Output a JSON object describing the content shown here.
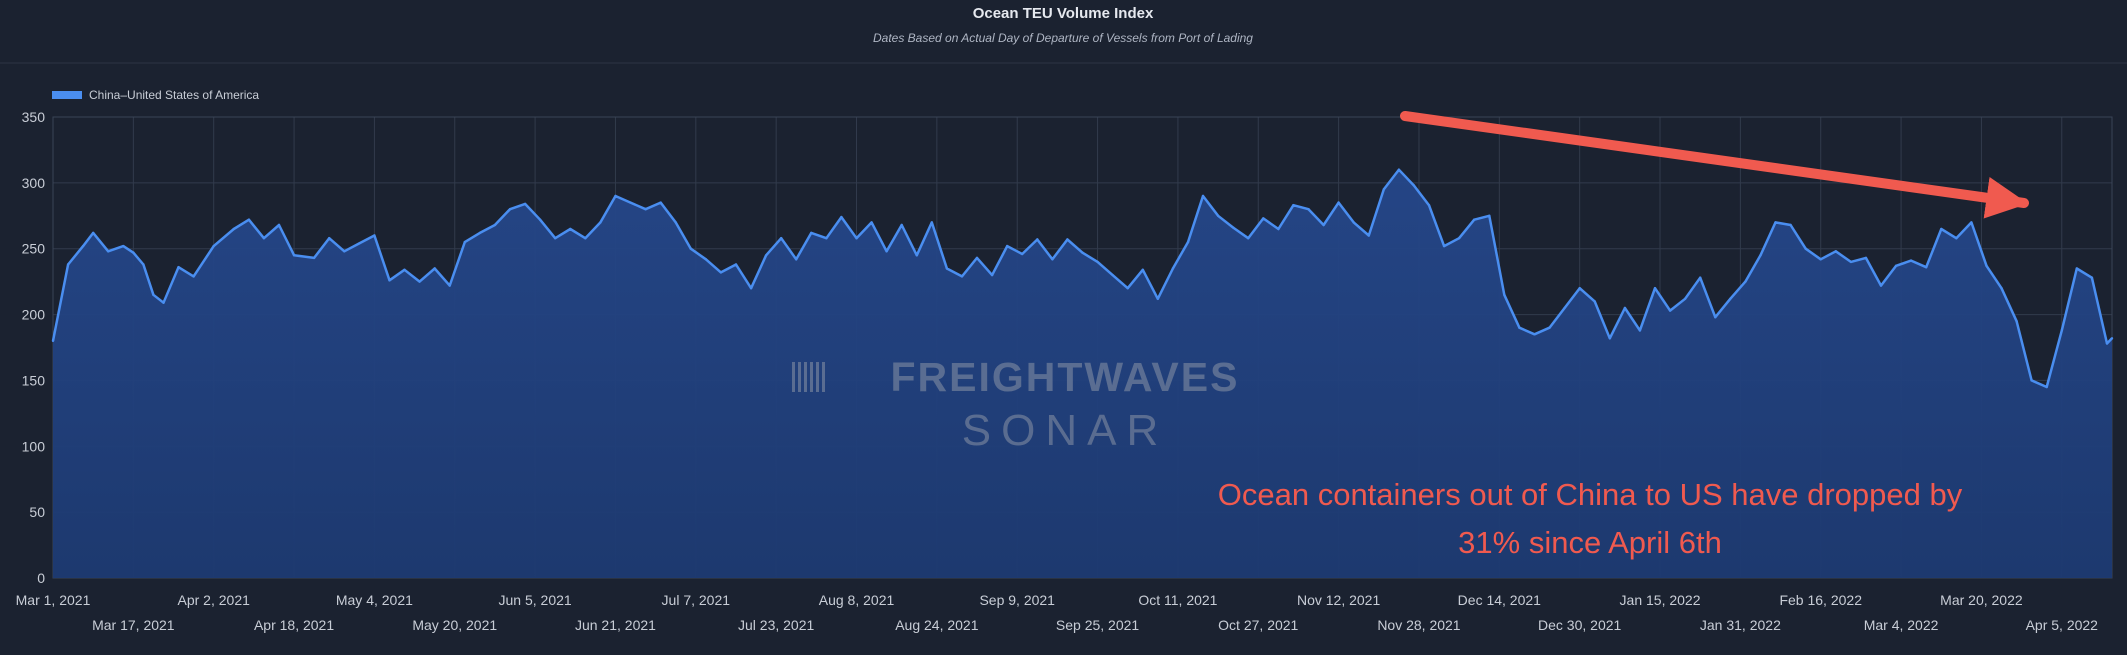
{
  "chart_data": {
    "type": "area",
    "title": "Ocean TEU Volume Index",
    "subtitle": "Dates Based on Actual Day of Departure of Vessels from Port of Lading",
    "xlabel": "",
    "ylabel": "",
    "ylim": [
      0,
      350
    ],
    "yticks": [
      0,
      50,
      100,
      150,
      200,
      250,
      300,
      350
    ],
    "x_start": "2021-03-01",
    "x_end": "2022-04-15",
    "xticks": [
      {
        "date": "2021-03-01",
        "label": "Mar 1, 2021",
        "row": 1
      },
      {
        "date": "2021-03-17",
        "label": "Mar 17, 2021",
        "row": 2
      },
      {
        "date": "2021-04-02",
        "label": "Apr 2, 2021",
        "row": 1
      },
      {
        "date": "2021-04-18",
        "label": "Apr 18, 2021",
        "row": 2
      },
      {
        "date": "2021-05-04",
        "label": "May 4, 2021",
        "row": 1
      },
      {
        "date": "2021-05-20",
        "label": "May 20, 2021",
        "row": 2
      },
      {
        "date": "2021-06-05",
        "label": "Jun 5, 2021",
        "row": 1
      },
      {
        "date": "2021-06-21",
        "label": "Jun 21, 2021",
        "row": 2
      },
      {
        "date": "2021-07-07",
        "label": "Jul 7, 2021",
        "row": 1
      },
      {
        "date": "2021-07-23",
        "label": "Jul 23, 2021",
        "row": 2
      },
      {
        "date": "2021-08-08",
        "label": "Aug 8, 2021",
        "row": 1
      },
      {
        "date": "2021-08-24",
        "label": "Aug 24, 2021",
        "row": 2
      },
      {
        "date": "2021-09-09",
        "label": "Sep 9, 2021",
        "row": 1
      },
      {
        "date": "2021-09-25",
        "label": "Sep 25, 2021",
        "row": 2
      },
      {
        "date": "2021-10-11",
        "label": "Oct 11, 2021",
        "row": 1
      },
      {
        "date": "2021-10-27",
        "label": "Oct 27, 2021",
        "row": 2
      },
      {
        "date": "2021-11-12",
        "label": "Nov 12, 2021",
        "row": 1
      },
      {
        "date": "2021-11-28",
        "label": "Nov 28, 2021",
        "row": 2
      },
      {
        "date": "2021-12-14",
        "label": "Dec 14, 2021",
        "row": 1
      },
      {
        "date": "2021-12-30",
        "label": "Dec 30, 2021",
        "row": 2
      },
      {
        "date": "2022-01-15",
        "label": "Jan 15, 2022",
        "row": 1
      },
      {
        "date": "2022-01-31",
        "label": "Jan 31, 2022",
        "row": 2
      },
      {
        "date": "2022-02-16",
        "label": "Feb 16, 2022",
        "row": 1
      },
      {
        "date": "2022-03-04",
        "label": "Mar 4, 2022",
        "row": 2
      },
      {
        "date": "2022-03-20",
        "label": "Mar 20, 2022",
        "row": 1
      },
      {
        "date": "2022-04-05",
        "label": "Apr 5, 2022",
        "row": 2
      }
    ],
    "grid": true,
    "legend": "top-left",
    "series": [
      {
        "name": "China–United States of America",
        "color": "#4a8ef0",
        "points": [
          [
            "2021-03-01",
            180
          ],
          [
            "2021-03-04",
            238
          ],
          [
            "2021-03-07",
            252
          ],
          [
            "2021-03-09",
            262
          ],
          [
            "2021-03-12",
            248
          ],
          [
            "2021-03-15",
            252
          ],
          [
            "2021-03-17",
            247
          ],
          [
            "2021-03-19",
            238
          ],
          [
            "2021-03-21",
            215
          ],
          [
            "2021-03-23",
            209
          ],
          [
            "2021-03-26",
            236
          ],
          [
            "2021-03-29",
            229
          ],
          [
            "2021-04-02",
            252
          ],
          [
            "2021-04-06",
            265
          ],
          [
            "2021-04-09",
            272
          ],
          [
            "2021-04-12",
            258
          ],
          [
            "2021-04-15",
            268
          ],
          [
            "2021-04-18",
            245
          ],
          [
            "2021-04-22",
            243
          ],
          [
            "2021-04-25",
            258
          ],
          [
            "2021-04-28",
            248
          ],
          [
            "2021-05-01",
            254
          ],
          [
            "2021-05-04",
            260
          ],
          [
            "2021-05-07",
            226
          ],
          [
            "2021-05-10",
            234
          ],
          [
            "2021-05-13",
            225
          ],
          [
            "2021-05-16",
            235
          ],
          [
            "2021-05-19",
            222
          ],
          [
            "2021-05-22",
            255
          ],
          [
            "2021-05-25",
            262
          ],
          [
            "2021-05-28",
            268
          ],
          [
            "2021-05-31",
            280
          ],
          [
            "2021-06-03",
            284
          ],
          [
            "2021-06-06",
            272
          ],
          [
            "2021-06-09",
            258
          ],
          [
            "2021-06-12",
            265
          ],
          [
            "2021-06-15",
            258
          ],
          [
            "2021-06-18",
            270
          ],
          [
            "2021-06-21",
            290
          ],
          [
            "2021-06-24",
            285
          ],
          [
            "2021-06-27",
            280
          ],
          [
            "2021-06-30",
            285
          ],
          [
            "2021-07-03",
            270
          ],
          [
            "2021-07-06",
            250
          ],
          [
            "2021-07-09",
            242
          ],
          [
            "2021-07-12",
            232
          ],
          [
            "2021-07-15",
            238
          ],
          [
            "2021-07-18",
            220
          ],
          [
            "2021-07-21",
            245
          ],
          [
            "2021-07-24",
            258
          ],
          [
            "2021-07-27",
            242
          ],
          [
            "2021-07-30",
            262
          ],
          [
            "2021-08-02",
            258
          ],
          [
            "2021-08-05",
            274
          ],
          [
            "2021-08-08",
            258
          ],
          [
            "2021-08-11",
            270
          ],
          [
            "2021-08-14",
            248
          ],
          [
            "2021-08-17",
            268
          ],
          [
            "2021-08-20",
            245
          ],
          [
            "2021-08-23",
            270
          ],
          [
            "2021-08-26",
            235
          ],
          [
            "2021-08-29",
            229
          ],
          [
            "2021-09-01",
            243
          ],
          [
            "2021-09-04",
            230
          ],
          [
            "2021-09-07",
            252
          ],
          [
            "2021-09-10",
            246
          ],
          [
            "2021-09-13",
            257
          ],
          [
            "2021-09-16",
            242
          ],
          [
            "2021-09-19",
            257
          ],
          [
            "2021-09-22",
            247
          ],
          [
            "2021-09-25",
            240
          ],
          [
            "2021-09-28",
            230
          ],
          [
            "2021-10-01",
            220
          ],
          [
            "2021-10-04",
            234
          ],
          [
            "2021-10-07",
            212
          ],
          [
            "2021-10-10",
            235
          ],
          [
            "2021-10-13",
            255
          ],
          [
            "2021-10-16",
            290
          ],
          [
            "2021-10-19",
            275
          ],
          [
            "2021-10-22",
            266
          ],
          [
            "2021-10-25",
            258
          ],
          [
            "2021-10-28",
            273
          ],
          [
            "2021-10-31",
            265
          ],
          [
            "2021-11-03",
            283
          ],
          [
            "2021-11-06",
            280
          ],
          [
            "2021-11-09",
            268
          ],
          [
            "2021-11-12",
            285
          ],
          [
            "2021-11-15",
            270
          ],
          [
            "2021-11-18",
            260
          ],
          [
            "2021-11-21",
            295
          ],
          [
            "2021-11-24",
            310
          ],
          [
            "2021-11-27",
            298
          ],
          [
            "2021-11-30",
            283
          ],
          [
            "2021-12-03",
            252
          ],
          [
            "2021-12-06",
            258
          ],
          [
            "2021-12-09",
            272
          ],
          [
            "2021-12-12",
            275
          ],
          [
            "2021-12-15",
            215
          ],
          [
            "2021-12-18",
            190
          ],
          [
            "2021-12-21",
            185
          ],
          [
            "2021-12-24",
            190
          ],
          [
            "2021-12-27",
            205
          ],
          [
            "2021-12-30",
            220
          ],
          [
            "2022-01-02",
            210
          ],
          [
            "2022-01-05",
            182
          ],
          [
            "2022-01-08",
            205
          ],
          [
            "2022-01-11",
            188
          ],
          [
            "2022-01-14",
            220
          ],
          [
            "2022-01-17",
            203
          ],
          [
            "2022-01-20",
            212
          ],
          [
            "2022-01-23",
            228
          ],
          [
            "2022-01-26",
            198
          ],
          [
            "2022-01-29",
            212
          ],
          [
            "2022-02-01",
            225
          ],
          [
            "2022-02-04",
            245
          ],
          [
            "2022-02-07",
            270
          ],
          [
            "2022-02-10",
            268
          ],
          [
            "2022-02-13",
            250
          ],
          [
            "2022-02-16",
            242
          ],
          [
            "2022-02-19",
            248
          ],
          [
            "2022-02-22",
            240
          ],
          [
            "2022-02-25",
            243
          ],
          [
            "2022-02-28",
            222
          ],
          [
            "2022-03-03",
            237
          ],
          [
            "2022-03-06",
            241
          ],
          [
            "2022-03-09",
            236
          ],
          [
            "2022-03-12",
            265
          ],
          [
            "2022-03-15",
            258
          ],
          [
            "2022-03-18",
            270
          ],
          [
            "2022-03-21",
            237
          ],
          [
            "2022-03-24",
            220
          ],
          [
            "2022-03-27",
            195
          ],
          [
            "2022-03-30",
            150
          ],
          [
            "2022-04-02",
            145
          ],
          [
            "2022-04-05",
            188
          ],
          [
            "2022-04-08",
            235
          ],
          [
            "2022-04-11",
            228
          ],
          [
            "2022-04-14",
            178
          ],
          [
            "2022-04-15",
            182
          ]
        ]
      }
    ],
    "watermark": {
      "line1": "FREIGHTWAVES",
      "line2": "SONAR"
    },
    "annotation": {
      "text_line1": "Ocean containers out of China to US have dropped by",
      "text_line2": "31% since April 6th",
      "color": "#f05a4f"
    }
  }
}
